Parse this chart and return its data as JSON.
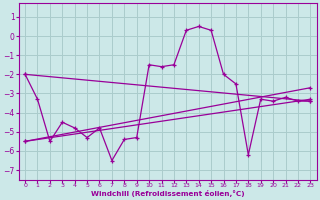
{
  "xlabel": "Windchill (Refroidissement éolien,°C)",
  "background_color": "#cce8e8",
  "line_color": "#990099",
  "grid_color": "#aacccc",
  "xlim": [
    -0.5,
    23.5
  ],
  "ylim": [
    -7.5,
    1.7
  ],
  "yticks": [
    1,
    0,
    -1,
    -2,
    -3,
    -4,
    -5,
    -6,
    -7
  ],
  "xticks": [
    0,
    1,
    2,
    3,
    4,
    5,
    6,
    7,
    8,
    9,
    10,
    11,
    12,
    13,
    14,
    15,
    16,
    17,
    18,
    19,
    20,
    21,
    22,
    23
  ],
  "series1_x": [
    0,
    1,
    2,
    3,
    4,
    5,
    6,
    7,
    8,
    9,
    10,
    11,
    12,
    13,
    14,
    15,
    16,
    17,
    18,
    19,
    20,
    21,
    22,
    23
  ],
  "series1_y": [
    -2.0,
    -3.3,
    -5.5,
    -4.5,
    -4.8,
    -5.3,
    -4.8,
    -6.5,
    -5.4,
    -5.3,
    -1.5,
    -1.6,
    -1.5,
    0.3,
    0.5,
    0.3,
    -2.0,
    -2.5,
    -6.2,
    -3.3,
    -3.4,
    -3.2,
    -3.4,
    -3.4
  ],
  "trend1_x": [
    0,
    23
  ],
  "trend1_y": [
    -2.0,
    -3.4
  ],
  "trend2_x": [
    0,
    23
  ],
  "trend2_y": [
    -5.5,
    -2.7
  ],
  "trend3_x": [
    0,
    23
  ],
  "trend3_y": [
    -5.5,
    -3.3
  ]
}
